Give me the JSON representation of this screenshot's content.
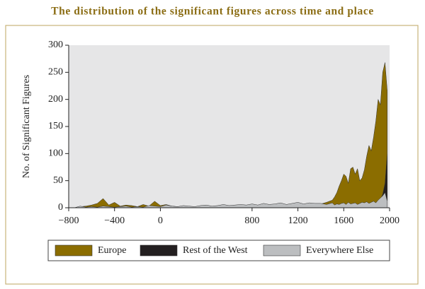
{
  "chart_data": {
    "type": "area",
    "title": "The distribution of the significant figures across time and place",
    "y_label": "No. of Significant Figures",
    "x": [
      -800,
      -750,
      -700,
      -650,
      -600,
      -550,
      -500,
      -450,
      -400,
      -350,
      -300,
      -250,
      -200,
      -150,
      -100,
      -50,
      0,
      50,
      100,
      150,
      200,
      250,
      300,
      350,
      400,
      450,
      500,
      550,
      600,
      650,
      700,
      750,
      800,
      850,
      900,
      950,
      1000,
      1050,
      1100,
      1150,
      1200,
      1250,
      1300,
      1350,
      1400,
      1450,
      1500,
      1520,
      1540,
      1560,
      1580,
      1600,
      1620,
      1640,
      1660,
      1680,
      1700,
      1720,
      1740,
      1760,
      1780,
      1800,
      1820,
      1840,
      1860,
      1880,
      1900,
      1920,
      1940,
      1960,
      1980
    ],
    "series": [
      {
        "name": "Europe",
        "color": "#8b6d00",
        "values": [
          0,
          0,
          2,
          3,
          5,
          8,
          17,
          5,
          10,
          3,
          5,
          4,
          2,
          6,
          3,
          12,
          4,
          6,
          3,
          2,
          3,
          2,
          1,
          2,
          1,
          0,
          1,
          1,
          0,
          0,
          1,
          1,
          0,
          1,
          1,
          1,
          2,
          2,
          3,
          3,
          5,
          5,
          6,
          5,
          7,
          10,
          14,
          20,
          28,
          40,
          50,
          62,
          58,
          45,
          72,
          75,
          62,
          72,
          50,
          55,
          70,
          95,
          115,
          105,
          130,
          160,
          200,
          190,
          250,
          268,
          215
        ]
      },
      {
        "name": "Rest of the West",
        "color": "#231f20",
        "values": [
          0,
          0,
          0,
          0,
          0,
          0,
          0,
          0,
          0,
          0,
          0,
          0,
          0,
          0,
          0,
          0,
          0,
          0,
          0,
          0,
          0,
          0,
          0,
          0,
          0,
          0,
          0,
          0,
          0,
          0,
          0,
          0,
          0,
          0,
          0,
          0,
          0,
          0,
          0,
          0,
          0,
          0,
          0,
          0,
          0,
          0,
          0,
          0,
          0,
          0,
          0,
          0,
          0,
          0,
          0,
          0,
          0,
          0,
          0,
          0,
          2,
          3,
          3,
          4,
          5,
          7,
          10,
          15,
          25,
          45,
          100
        ]
      },
      {
        "name": "Everywhere Else",
        "color": "#bcbec0",
        "values": [
          0,
          0,
          3,
          1,
          2,
          1,
          3,
          2,
          1,
          2,
          3,
          1,
          2,
          1,
          4,
          3,
          2,
          5,
          3,
          2,
          4,
          3,
          2,
          4,
          5,
          3,
          4,
          6,
          4,
          5,
          6,
          5,
          7,
          5,
          8,
          6,
          7,
          9,
          6,
          8,
          10,
          7,
          9,
          8,
          8,
          6,
          9,
          5,
          7,
          6,
          8,
          9,
          6,
          10,
          7,
          8,
          9,
          6,
          8,
          10,
          9,
          11,
          8,
          10,
          12,
          9,
          14,
          18,
          22,
          28,
          12
        ]
      }
    ],
    "xlim": [
      -800,
      2000
    ],
    "xticks": [
      {
        "value": -800,
        "label": "−800"
      },
      {
        "value": -400,
        "label": "−400"
      },
      0,
      800,
      1200,
      1600,
      2000
    ],
    "ylim": [
      0,
      300
    ],
    "yticks": [
      0,
      50,
      100,
      150,
      200,
      250,
      300
    ],
    "legend": "bottom"
  }
}
